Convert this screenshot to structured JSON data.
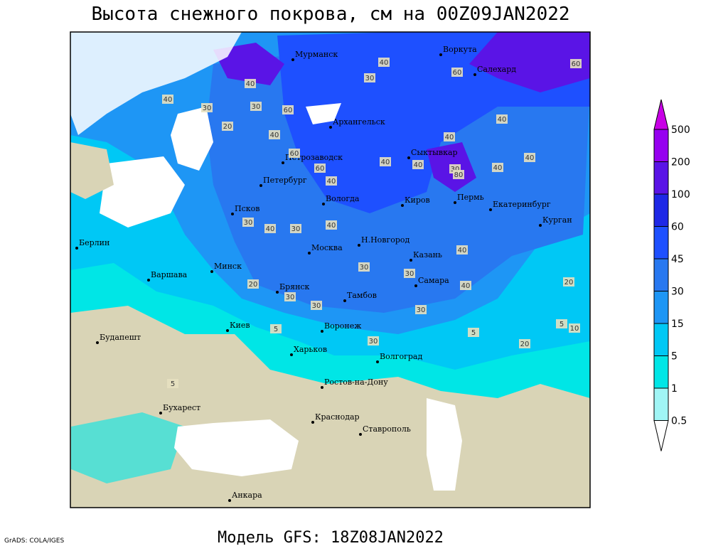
{
  "header": {
    "title": "Высота снежного покрова, см на 00Z09JAN2022"
  },
  "footer": {
    "model": "Модель GFS: 18Z08JAN2022",
    "credit": "GrADS: COLA/IGES"
  },
  "cities": [
    "Мурманск",
    "Воркута",
    "Салехард",
    "Архангельск",
    "Сыктывкар",
    "Петрозаводск",
    "Петербург",
    "Вологда",
    "Киров",
    "Пермь",
    "Екатеринбург",
    "Курган",
    "Псков",
    "Берлин",
    "Н.Новгород",
    "Казань",
    "Москва",
    "Варшава",
    "Минск",
    "Самара",
    "Брянск",
    "Тамбов",
    "Киев",
    "Воронеж",
    "Будапешт",
    "Харьков",
    "Волгоград",
    "Ростов-на-Дону",
    "Бухарест",
    "Краснодар",
    "Ставрополь",
    "Анкара"
  ],
  "contour_labels": [
    40,
    30,
    40,
    20,
    30,
    60,
    40,
    60,
    60,
    40,
    30,
    40,
    60,
    40,
    40,
    30,
    40,
    40,
    80,
    40,
    30,
    30,
    40,
    40,
    40,
    30,
    40,
    30,
    40,
    20,
    30,
    30,
    30,
    20,
    5,
    5,
    10,
    20,
    5,
    30,
    5,
    60
  ],
  "legend": {
    "levels": [
      0.5,
      1,
      5,
      15,
      30,
      45,
      60,
      100,
      200,
      500
    ],
    "colors": [
      "#ffffff",
      "#a0f5f5",
      "#00e6e6",
      "#00c8f5",
      "#1e96f5",
      "#2878f0",
      "#1e50ff",
      "#1e28e6",
      "#5a14e6",
      "#9600f0",
      "#c800e6"
    ]
  }
}
